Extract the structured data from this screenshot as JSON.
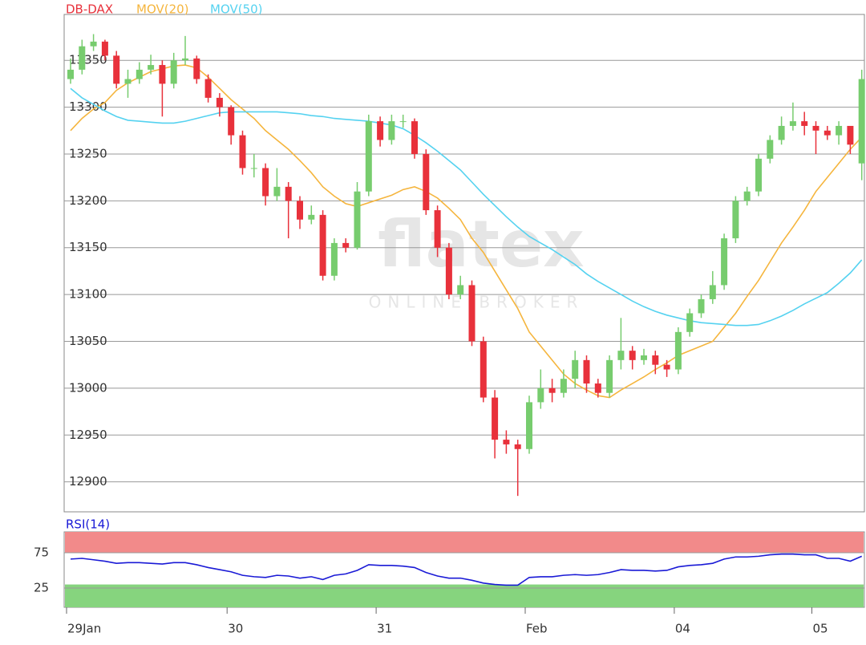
{
  "chart_data": [
    {
      "type": "candlestick",
      "name": "DB-DAX",
      "up_color": "#77cc6e",
      "down_color": "#e8313b",
      "name_color": "#e8313b",
      "watermark": "flatex",
      "watermark_sub": "ONLINE BROKER",
      "categories": [
        "29Jan",
        null,
        null,
        null,
        null,
        null,
        null,
        null,
        null,
        null,
        null,
        null,
        null,
        null,
        "30",
        null,
        null,
        null,
        null,
        null,
        null,
        null,
        null,
        null,
        null,
        null,
        null,
        "31",
        null,
        null,
        null,
        null,
        null,
        null,
        null,
        null,
        null,
        null,
        null,
        null,
        "Feb",
        null,
        null,
        null,
        null,
        null,
        null,
        null,
        null,
        null,
        null,
        null,
        null,
        "04",
        null,
        null,
        null,
        null,
        null,
        null,
        null,
        null,
        null,
        null,
        null,
        "05",
        null,
        null,
        null,
        null
      ],
      "open": [
        13330,
        13340,
        13365,
        13370,
        13355,
        13325,
        13330,
        13340,
        13345,
        13325,
        13350,
        13352,
        13330,
        13310,
        13300,
        13270,
        13235,
        13235,
        13205,
        13215,
        13200,
        13180,
        13185,
        13120,
        13155,
        13150,
        13210,
        13285,
        13265,
        13285,
        13285,
        13250,
        13190,
        13150,
        13100,
        13110,
        13050,
        12990,
        12945,
        12940,
        12935,
        12985,
        13000,
        12995,
        13010,
        13030,
        13005,
        12995,
        13030,
        13040,
        13030,
        13035,
        13025,
        13020,
        13060,
        13080,
        13095,
        13110,
        13160,
        13200,
        13210,
        13245,
        13265,
        13280,
        13285,
        13280,
        13275,
        13270,
        13280,
        13240
      ],
      "high": [
        13352,
        13372,
        13378,
        13372,
        13360,
        13340,
        13348,
        13356,
        13350,
        13358,
        13376,
        13355,
        13335,
        13315,
        13302,
        13275,
        13250,
        13240,
        13235,
        13220,
        13205,
        13195,
        13190,
        13160,
        13160,
        13220,
        13292,
        13290,
        13292,
        13292,
        13288,
        13255,
        13195,
        13155,
        13120,
        13115,
        13055,
        12998,
        12955,
        12945,
        12992,
        13020,
        13010,
        13020,
        13040,
        13035,
        13010,
        13035,
        13075,
        13045,
        13042,
        13040,
        13030,
        13065,
        13085,
        13100,
        13125,
        13165,
        13205,
        13215,
        13250,
        13270,
        13290,
        13305,
        13295,
        13285,
        13280,
        13285,
        13275,
        13340
      ],
      "low": [
        13325,
        13335,
        13360,
        13350,
        13320,
        13310,
        13325,
        13335,
        13290,
        13320,
        13345,
        13325,
        13305,
        13290,
        13260,
        13228,
        13225,
        13195,
        13200,
        13160,
        13170,
        13175,
        13115,
        13115,
        13145,
        13148,
        13205,
        13258,
        13260,
        13278,
        13245,
        13185,
        13140,
        13095,
        13095,
        13045,
        12985,
        12925,
        12930,
        12885,
        12930,
        12978,
        12985,
        12990,
        13000,
        12995,
        12990,
        12990,
        13020,
        13020,
        13025,
        13015,
        13012,
        13015,
        13055,
        13075,
        13090,
        13105,
        13155,
        13195,
        13205,
        13240,
        13260,
        13275,
        13270,
        13250,
        13265,
        13260,
        13250,
        13222
      ],
      "close": [
        13340,
        13365,
        13370,
        13355,
        13325,
        13330,
        13340,
        13345,
        13325,
        13350,
        13352,
        13330,
        13310,
        13300,
        13270,
        13235,
        13235,
        13205,
        13215,
        13200,
        13180,
        13185,
        13120,
        13155,
        13150,
        13210,
        13285,
        13265,
        13285,
        13285,
        13250,
        13190,
        13150,
        13100,
        13110,
        13050,
        12990,
        12945,
        12940,
        12935,
        12985,
        13000,
        12995,
        13010,
        13030,
        13005,
        12995,
        13030,
        13040,
        13030,
        13035,
        13025,
        13020,
        13060,
        13080,
        13095,
        13110,
        13160,
        13200,
        13210,
        13245,
        13265,
        13280,
        13285,
        13280,
        13275,
        13270,
        13280,
        13260,
        13330
      ],
      "series": [
        {
          "name": "MOV(20)",
          "color": "#f5b53d",
          "values": [
            13275,
            13288,
            13298,
            13305,
            13318,
            13326,
            13332,
            13338,
            13341,
            13344,
            13345,
            13342,
            13332,
            13320,
            13308,
            13298,
            13288,
            13275,
            13265,
            13255,
            13243,
            13230,
            13215,
            13205,
            13197,
            13194,
            13198,
            13202,
            13206,
            13212,
            13215,
            13210,
            13203,
            13192,
            13180,
            13160,
            13145,
            13125,
            13105,
            13085,
            13060,
            13045,
            13030,
            13015,
            13005,
            12998,
            12992,
            12990,
            12998,
            13005,
            13012,
            13020,
            13027,
            13035,
            13040,
            13045,
            13050,
            13065,
            13080,
            13098,
            13115,
            13135,
            13155,
            13172,
            13190,
            13210,
            13225,
            13240,
            13255,
            13268
          ]
        },
        {
          "name": "MOV(50)",
          "color": "#55d2f0",
          "values": [
            13320,
            13310,
            13303,
            13296,
            13290,
            13286,
            13285,
            13284,
            13283,
            13283,
            13285,
            13288,
            13291,
            13294,
            13295,
            13295,
            13295,
            13295,
            13295,
            13294,
            13293,
            13291,
            13290,
            13288,
            13287,
            13286,
            13285,
            13283,
            13281,
            13277,
            13270,
            13262,
            13253,
            13243,
            13233,
            13220,
            13207,
            13195,
            13183,
            13172,
            13162,
            13155,
            13148,
            13140,
            13132,
            13122,
            13114,
            13107,
            13100,
            13093,
            13087,
            13082,
            13078,
            13075,
            13072,
            13070,
            13069,
            13068,
            13067,
            13067,
            13068,
            13072,
            13077,
            13083,
            13090,
            13096,
            13102,
            13112,
            13123,
            13137
          ]
        }
      ],
      "ylim": [
        12868,
        13399
      ],
      "yticks": [
        12900,
        12950,
        13000,
        13050,
        13100,
        13150,
        13200,
        13250,
        13300,
        13350
      ],
      "grid": true
    },
    {
      "type": "line",
      "series": [
        {
          "name": "RSI(14)",
          "color": "#1a1ad6",
          "values": [
            66,
            67,
            65,
            63,
            60,
            61,
            61,
            60,
            59,
            61,
            61,
            58,
            54,
            51,
            48,
            43,
            41,
            40,
            43,
            42,
            39,
            41,
            37,
            43,
            45,
            50,
            58,
            57,
            57,
            56,
            54,
            47,
            42,
            39,
            39,
            36,
            32,
            30,
            29,
            29,
            40,
            41,
            41,
            43,
            44,
            43,
            44,
            47,
            51,
            50,
            50,
            49,
            50,
            55,
            57,
            58,
            60,
            66,
            69,
            69,
            70,
            72,
            73,
            73,
            72,
            72,
            67,
            67,
            63,
            70
          ]
        }
      ],
      "overbought": 75,
      "oversold": 30,
      "overbought_color": "#f28a8a",
      "oversold_color": "#86d47e",
      "ylim": [
        -2.3,
        104.5
      ],
      "yticks": [
        25,
        75
      ],
      "grid": true
    }
  ]
}
